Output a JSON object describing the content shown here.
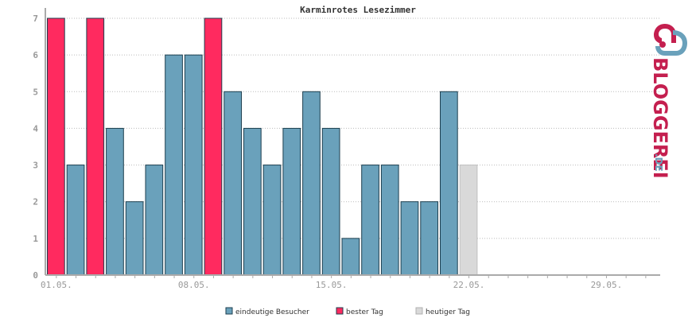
{
  "chart_data": {
    "type": "bar",
    "title": "Karminrotes Lesezimmer",
    "xlabel": "",
    "ylabel": "",
    "ylim": [
      0,
      7
    ],
    "yticks": [
      0,
      1,
      2,
      3,
      4,
      5,
      6,
      7
    ],
    "x_days_total": 31,
    "x_tick_labels": [
      {
        "day": 1,
        "label": "01.05."
      },
      {
        "day": 8,
        "label": "08.05."
      },
      {
        "day": 15,
        "label": "15.05."
      },
      {
        "day": 22,
        "label": "22.05."
      },
      {
        "day": 29,
        "label": "29.05."
      }
    ],
    "bars": [
      {
        "day": 1,
        "value": 7,
        "kind": "best"
      },
      {
        "day": 2,
        "value": 3,
        "kind": "unique"
      },
      {
        "day": 3,
        "value": 7,
        "kind": "best"
      },
      {
        "day": 4,
        "value": 4,
        "kind": "unique"
      },
      {
        "day": 5,
        "value": 2,
        "kind": "unique"
      },
      {
        "day": 6,
        "value": 3,
        "kind": "unique"
      },
      {
        "day": 7,
        "value": 6,
        "kind": "unique"
      },
      {
        "day": 8,
        "value": 6,
        "kind": "unique"
      },
      {
        "day": 9,
        "value": 7,
        "kind": "best"
      },
      {
        "day": 10,
        "value": 5,
        "kind": "unique"
      },
      {
        "day": 11,
        "value": 4,
        "kind": "unique"
      },
      {
        "day": 12,
        "value": 3,
        "kind": "unique"
      },
      {
        "day": 13,
        "value": 4,
        "kind": "unique"
      },
      {
        "day": 14,
        "value": 5,
        "kind": "unique"
      },
      {
        "day": 15,
        "value": 4,
        "kind": "unique"
      },
      {
        "day": 16,
        "value": 1,
        "kind": "unique"
      },
      {
        "day": 17,
        "value": 3,
        "kind": "unique"
      },
      {
        "day": 18,
        "value": 3,
        "kind": "unique"
      },
      {
        "day": 19,
        "value": 2,
        "kind": "unique"
      },
      {
        "day": 20,
        "value": 2,
        "kind": "unique"
      },
      {
        "day": 21,
        "value": 5,
        "kind": "unique"
      },
      {
        "day": 22,
        "value": 3,
        "kind": "today"
      }
    ],
    "legend": [
      {
        "key": "unique",
        "label": "eindeutige Besucher",
        "color": "#6aa1bb"
      },
      {
        "key": "best",
        "label": "bester Tag",
        "color": "#ff2a5f"
      },
      {
        "key": "today",
        "label": "heutiger Tag",
        "color": "#d9d9d9"
      }
    ],
    "legend_position": "bottom",
    "grid": true
  },
  "logo": {
    "text_main": "BLOGGEREI",
    "text_suffix": ".DE",
    "color_main": "#c41f4f",
    "color_suffix": "#6aa1bb"
  },
  "colors": {
    "unique": "#6aa1bb",
    "best": "#ff2a5f",
    "today": "#d9d9d9",
    "bar_stroke": "#1d3f4f",
    "axis": "#aaaaaa",
    "grid": "#bbbbbb"
  }
}
